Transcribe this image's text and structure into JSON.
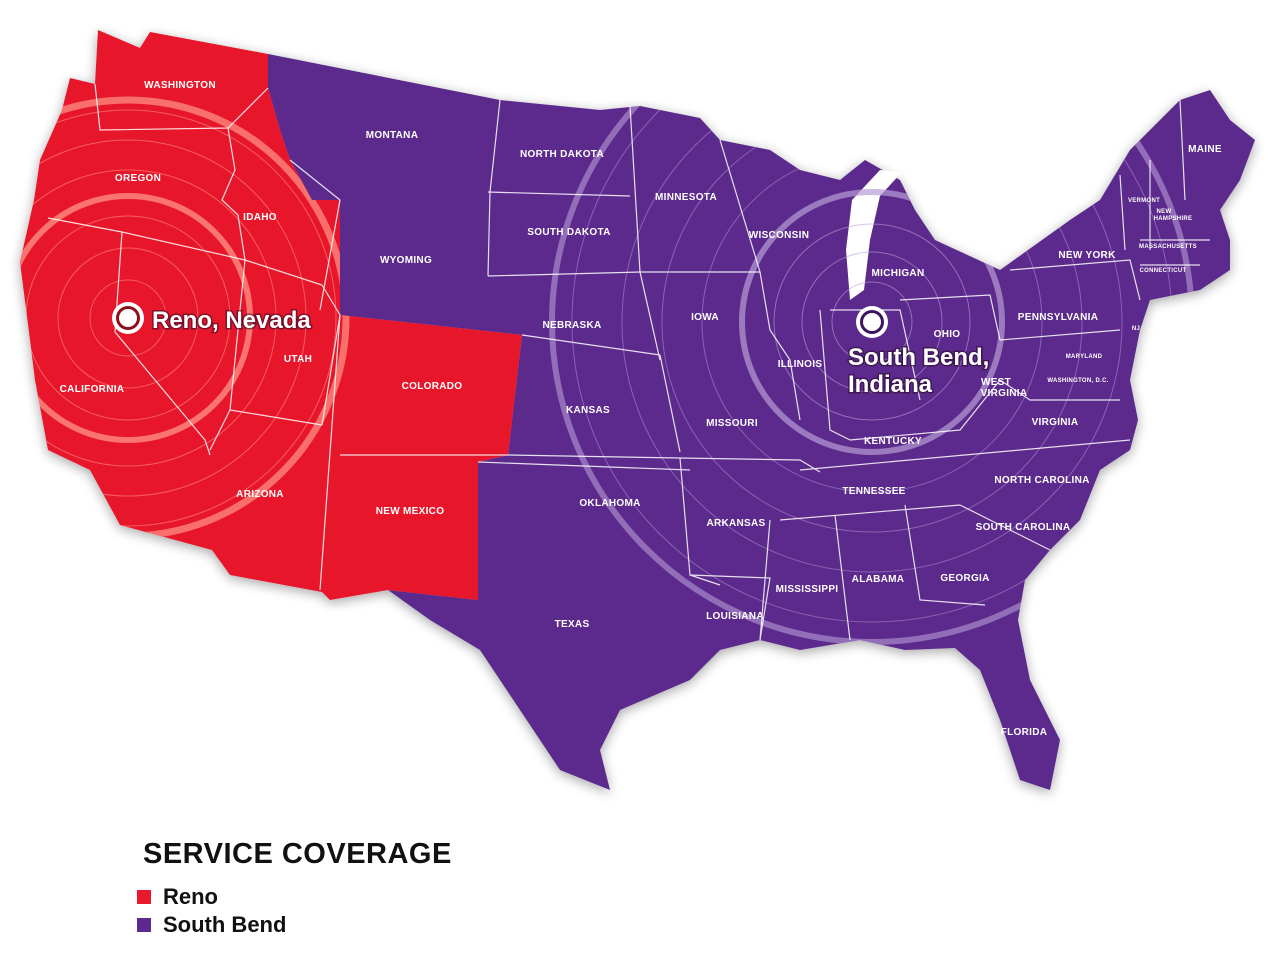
{
  "colors": {
    "reno": "#e8192c",
    "south_bend": "#5b2a8c",
    "border": "#ffffff"
  },
  "cities": {
    "reno": {
      "line1": "Reno, Nevada"
    },
    "south_bend": {
      "line1": "South Bend,",
      "line2": "Indiana"
    }
  },
  "states": {
    "washington": "WASHINGTON",
    "oregon": "OREGON",
    "idaho": "IDAHO",
    "california": "CALIFORNIA",
    "utah": "UTAH",
    "arizona": "ARIZONA",
    "montana": "MONTANA",
    "wyoming": "WYOMING",
    "colorado": "COLORADO",
    "new_mexico": "NEW MEXICO",
    "north_dakota": "NORTH DAKOTA",
    "south_dakota": "SOUTH DAKOTA",
    "nebraska": "NEBRASKA",
    "kansas": "KANSAS",
    "oklahoma": "OKLAHOMA",
    "texas": "TEXAS",
    "minnesota": "MINNESOTA",
    "iowa": "IOWA",
    "missouri": "MISSOURI",
    "arkansas": "ARKANSAS",
    "louisiana": "LOUISIANA",
    "wisconsin": "WISCONSIN",
    "illinois": "ILLINOIS",
    "michigan": "MICHIGAN",
    "ohio": "OHIO",
    "kentucky": "KENTUCKY",
    "tennessee": "TENNESSEE",
    "mississippi": "MISSISSIPPI",
    "alabama": "ALABAMA",
    "georgia": "GEORGIA",
    "florida": "FLORIDA",
    "south_carolina": "SOUTH CAROLINA",
    "north_carolina": "NORTH CAROLINA",
    "virginia": "VIRGINIA",
    "west_virginia_1": "WEST",
    "west_virginia_2": "VIRGINIA",
    "pennsylvania": "PENNSYLVANIA",
    "new_york": "NEW YORK",
    "maryland": "MARYLAND",
    "washington_dc": "WASHINGTON, D.C.",
    "maine": "MAINE",
    "vermont": "VERMONT",
    "new_hampshire_1": "NEW",
    "new_hampshire_2": "HAMPSHIRE",
    "massachusetts": "MASSACHUSETTS",
    "connecticut": "CONNECTICUT",
    "new_jersey": "NJ"
  },
  "legend": {
    "title": "SERVICE COVERAGE",
    "items": [
      {
        "label": "Reno"
      },
      {
        "label": "South Bend"
      }
    ]
  }
}
